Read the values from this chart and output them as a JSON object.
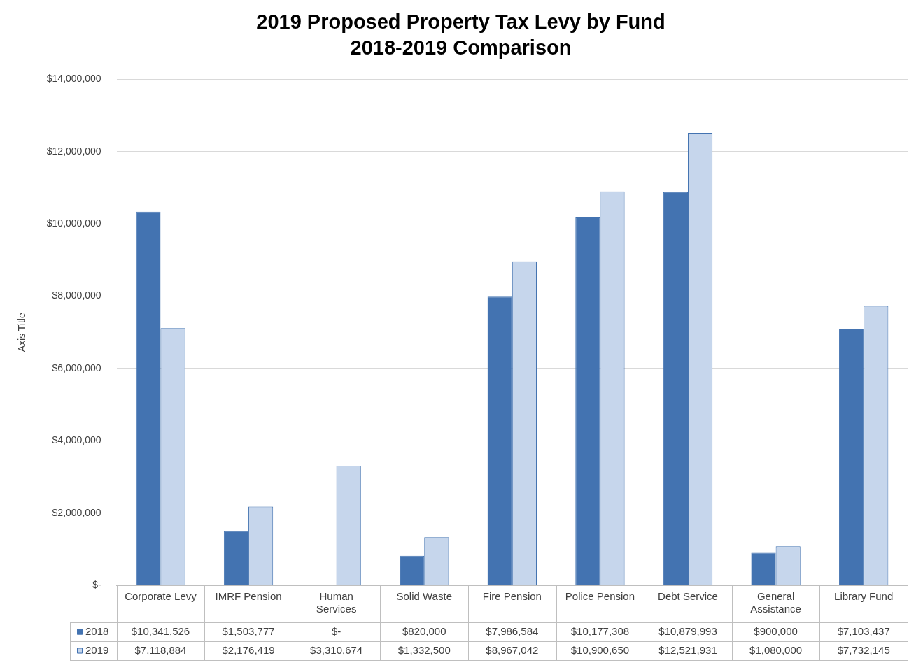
{
  "chart_data": {
    "type": "bar",
    "title": "2019 Proposed Property Tax Levy by Fund",
    "subtitle": "2018-2019 Comparison",
    "ylabel": "Axis Title",
    "categories": [
      "Corporate Levy",
      "IMRF Pension",
      "Human Services",
      "Solid Waste",
      "Fire Pension",
      "Police Pension",
      "Debt Service",
      "General Assistance",
      "Library Fund"
    ],
    "series": [
      {
        "name": "2018",
        "color": "#4373b1",
        "values": [
          10341526,
          1503777,
          0,
          820000,
          7986584,
          10177308,
          10879993,
          900000,
          7103437
        ],
        "value_labels": [
          "$10,341,526",
          "$1,503,777",
          "$-",
          "$820,000",
          "$7,986,584",
          "$10,177,308",
          "$10,879,993",
          "$900,000",
          "$7,103,437"
        ]
      },
      {
        "name": "2019",
        "color": "#c6d6ec",
        "values": [
          7118884,
          2176419,
          3310674,
          1332500,
          8967042,
          10900650,
          12521931,
          1080000,
          7732145
        ],
        "value_labels": [
          "$7,118,884",
          "$2,176,419",
          "$3,310,674",
          "$1,332,500",
          "$8,967,042",
          "$10,900,650",
          "$12,521,931",
          "$1,080,000",
          "$7,732,145"
        ]
      }
    ],
    "ylim": [
      0,
      14000000
    ],
    "yticks": [
      {
        "value": 0,
        "label": "$-"
      },
      {
        "value": 2000000,
        "label": "$2,000,000"
      },
      {
        "value": 4000000,
        "label": "$4,000,000"
      },
      {
        "value": 6000000,
        "label": "$6,000,000"
      },
      {
        "value": 8000000,
        "label": "$8,000,000"
      },
      {
        "value": 10000000,
        "label": "$10,000,000"
      },
      {
        "value": 12000000,
        "label": "$12,000,000"
      },
      {
        "value": 14000000,
        "label": "$14,000,000"
      }
    ],
    "grid": "y",
    "legend": "bottom"
  }
}
